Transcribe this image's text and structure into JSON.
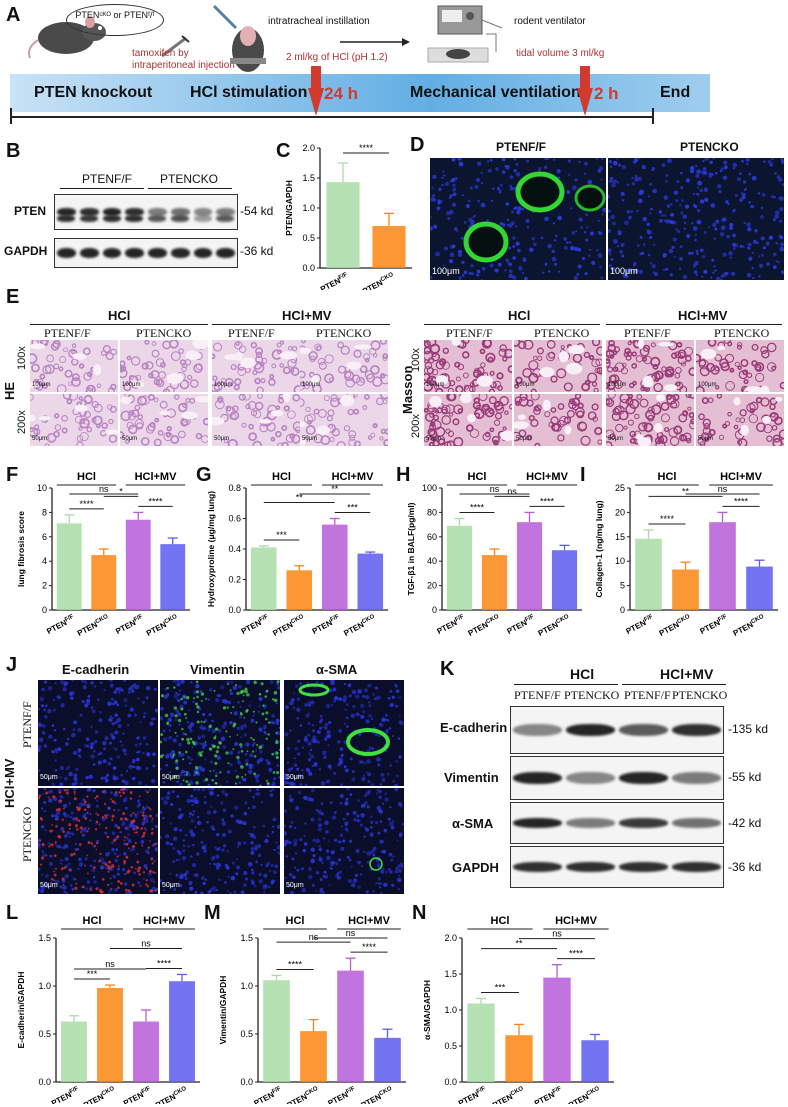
{
  "panelA": {
    "letter": "A",
    "genotype_circle": "PTENᶜᴷᴼ or PTENᶠ/ᶠ",
    "tamoxifen": "tamoxifen by intraperitoneal injection",
    "instill_title": "intratracheal instillation",
    "instill_dose": "2 ml/kg of HCl (pH 1.2)",
    "vent_title": "rodent ventilator",
    "vent_tidal": "tidal volume 3 ml/kg",
    "stages": [
      "PTEN knockout",
      "HCl stimulation",
      "Mechanical ventilation",
      "End"
    ],
    "times": [
      "24 h",
      "2 h"
    ]
  },
  "panelB": {
    "letter": "B",
    "groups": [
      "PTENF/F",
      "PTENCKO"
    ],
    "rows": [
      "PTEN",
      "GAPDH"
    ],
    "kd": [
      "-54 kd",
      "-36 kd"
    ]
  },
  "panelD": {
    "letter": "D",
    "titles": [
      "PTENF/F",
      "PTENCKO"
    ],
    "scale": [
      "100μm",
      "100μm"
    ]
  },
  "panelE": {
    "letter": "E",
    "groups": [
      "HCl",
      "HCl+MV",
      "HCl",
      "HCl+MV"
    ],
    "genotypes": [
      "PTENF/F",
      "PTENCKO",
      "PTENF/F",
      "PTENCKO",
      "PTENF/F",
      "PTENCKO",
      "PTENF/F",
      "PTENCKO"
    ],
    "stains": [
      "HE",
      "Masson"
    ],
    "mags": [
      "100x",
      "200x",
      "100x",
      "200x"
    ],
    "scale": [
      "100μm",
      "50μm"
    ]
  },
  "panelJ": {
    "letter": "J",
    "markers": [
      "E-cadherin",
      "Vimentin",
      "α-SMA"
    ],
    "rowlabels": [
      "PTENF/F",
      "PTENCKO"
    ],
    "group": "HCl+MV",
    "scale": "50μm"
  },
  "panelK": {
    "letter": "K",
    "groups": [
      "HCl",
      "HCl+MV"
    ],
    "genotypes": [
      "PTENF/F",
      "PTENCKO",
      "PTENF/F",
      "PTENCKO"
    ],
    "rows": [
      "E-cadherin",
      "Vimentin",
      "α-SMA",
      "GAPDH"
    ],
    "kd": [
      "-135 kd",
      "-55 kd",
      "-42 kd",
      "-36 kd"
    ]
  },
  "colors": {
    "green": "#a8dca6",
    "orange": "#fb8512",
    "purple": "#b75cd8",
    "blue": "#5c5cf0"
  },
  "chart_data": [
    {
      "id": "C",
      "type": "bar",
      "categories": [
        "PTENF/F",
        "PTENCKO"
      ],
      "values": [
        1.43,
        0.7
      ],
      "errors": [
        0.32,
        0.21
      ],
      "ylabel": "PTEN/GAPDH",
      "ylim": [
        0,
        2.0
      ],
      "yticks": [
        "0.0",
        "0.5",
        "1.0",
        "1.5",
        "2.0"
      ],
      "groups": [],
      "sig": [
        {
          "a": 0,
          "b": 1,
          "t": "****"
        }
      ]
    },
    {
      "id": "F",
      "type": "bar",
      "categories": [
        "PTENF/F",
        "PTENCKO",
        "PTENF/F",
        "PTENCKO"
      ],
      "values": [
        7.1,
        4.5,
        7.4,
        5.4
      ],
      "errors": [
        0.7,
        0.5,
        0.6,
        0.5
      ],
      "ylabel": "lung fibrosis score",
      "ylim": [
        0,
        10
      ],
      "yticks": [
        "0",
        "2",
        "4",
        "6",
        "8",
        "10"
      ],
      "groups": [
        "HCl",
        "HCl+MV"
      ],
      "sig": [
        {
          "a": 0,
          "b": 1,
          "t": "****"
        },
        {
          "a": 2,
          "b": 3,
          "t": "****"
        },
        {
          "a": 1,
          "b": 2,
          "t": "*"
        },
        {
          "a": 0,
          "b": 2,
          "t": "ns"
        }
      ]
    },
    {
      "id": "G",
      "type": "bar",
      "categories": [
        "PTENF/F",
        "PTENCKO",
        "PTENF/F",
        "PTENCKO"
      ],
      "values": [
        0.41,
        0.26,
        0.56,
        0.37
      ],
      "errors": [
        0.01,
        0.03,
        0.04,
        0.01
      ],
      "ylabel": "Hydroxyproline (μg/mg lung)",
      "ylim": [
        0,
        0.8
      ],
      "yticks": [
        "0.0",
        "0.2",
        "0.4",
        "0.6",
        "0.8"
      ],
      "groups": [
        "HCl",
        "HCl+MV"
      ],
      "sig": [
        {
          "a": 0,
          "b": 1,
          "t": "***"
        },
        {
          "a": 2,
          "b": 3,
          "t": "***"
        },
        {
          "a": 0,
          "b": 2,
          "t": "**"
        },
        {
          "a": 1,
          "b": 3,
          "t": "**"
        }
      ]
    },
    {
      "id": "H",
      "type": "bar",
      "categories": [
        "PTENF/F",
        "PTENCKO",
        "PTENF/F",
        "PTENCKO"
      ],
      "values": [
        69,
        45,
        72,
        49
      ],
      "errors": [
        6,
        5,
        8,
        4
      ],
      "ylabel": "TGF-β1 in BALF(pg/ml)",
      "ylim": [
        0,
        100
      ],
      "yticks": [
        "0",
        "20",
        "40",
        "60",
        "80",
        "100"
      ],
      "groups": [
        "HCl",
        "HCl+MV"
      ],
      "sig": [
        {
          "a": 0,
          "b": 1,
          "t": "****"
        },
        {
          "a": 2,
          "b": 3,
          "t": "****"
        },
        {
          "a": 1,
          "b": 2,
          "t": "ns"
        },
        {
          "a": 0,
          "b": 2,
          "t": "ns"
        }
      ]
    },
    {
      "id": "I",
      "type": "bar",
      "categories": [
        "PTENF/F",
        "PTENCKO",
        "PTENF/F",
        "PTENCKO"
      ],
      "values": [
        14.6,
        8.3,
        18.0,
        8.9
      ],
      "errors": [
        1.8,
        1.5,
        2.0,
        1.3
      ],
      "ylabel": "Collagen-1 (ng/mg lung)",
      "ylim": [
        0,
        25
      ],
      "yticks": [
        "0",
        "5",
        "10",
        "15",
        "20",
        "25"
      ],
      "groups": [
        "HCl",
        "HCl+MV"
      ],
      "sig": [
        {
          "a": 0,
          "b": 1,
          "t": "****"
        },
        {
          "a": 2,
          "b": 3,
          "t": "****"
        },
        {
          "a": 0,
          "b": 2,
          "t": "**"
        },
        {
          "a": 1,
          "b": 3,
          "t": "ns"
        }
      ]
    },
    {
      "id": "L",
      "type": "bar",
      "categories": [
        "PTENF/F",
        "PTENCKO",
        "PTENF/F",
        "PTENCKO"
      ],
      "values": [
        0.63,
        0.98,
        0.63,
        1.05
      ],
      "errors": [
        0.06,
        0.03,
        0.12,
        0.07
      ],
      "ylabel": "E-cadherin/GAPDH",
      "ylim": [
        0,
        1.5
      ],
      "yticks": [
        "0.0",
        "0.5",
        "1.0",
        "1.5"
      ],
      "groups": [
        "HCl",
        "HCl+MV"
      ],
      "sig": [
        {
          "a": 0,
          "b": 1,
          "t": "***"
        },
        {
          "a": 2,
          "b": 3,
          "t": "****"
        },
        {
          "a": 0,
          "b": 2,
          "t": "ns"
        },
        {
          "a": 1,
          "b": 3,
          "t": "ns"
        }
      ]
    },
    {
      "id": "M",
      "type": "bar",
      "categories": [
        "PTENF/F",
        "PTENCKO",
        "PTENF/F",
        "PTENCKO"
      ],
      "values": [
        1.06,
        0.53,
        1.16,
        0.46
      ],
      "errors": [
        0.05,
        0.12,
        0.13,
        0.09
      ],
      "ylabel": "Vimentin/GAPDH",
      "ylim": [
        0,
        1.5
      ],
      "yticks": [
        "0.0",
        "0.5",
        "1.0",
        "1.5"
      ],
      "groups": [
        "HCl",
        "HCl+MV"
      ],
      "sig": [
        {
          "a": 0,
          "b": 1,
          "t": "****"
        },
        {
          "a": 2,
          "b": 3,
          "t": "****"
        },
        {
          "a": 0,
          "b": 2,
          "t": "ns"
        },
        {
          "a": 1,
          "b": 3,
          "t": "ns"
        }
      ]
    },
    {
      "id": "N",
      "type": "bar",
      "categories": [
        "PTENF/F",
        "PTENCKO",
        "PTENF/F",
        "PTENCKO"
      ],
      "values": [
        1.09,
        0.65,
        1.45,
        0.58
      ],
      "errors": [
        0.07,
        0.15,
        0.18,
        0.08
      ],
      "ylabel": "α-SMA/GAPDH",
      "ylim": [
        0,
        2.0
      ],
      "yticks": [
        "0.0",
        "0.5",
        "1.0",
        "1.5",
        "2.0"
      ],
      "groups": [
        "HCl",
        "HCl+MV"
      ],
      "sig": [
        {
          "a": 0,
          "b": 1,
          "t": "***"
        },
        {
          "a": 2,
          "b": 3,
          "t": "****"
        },
        {
          "a": 0,
          "b": 2,
          "t": "**"
        },
        {
          "a": 1,
          "b": 3,
          "t": "ns"
        }
      ]
    }
  ]
}
